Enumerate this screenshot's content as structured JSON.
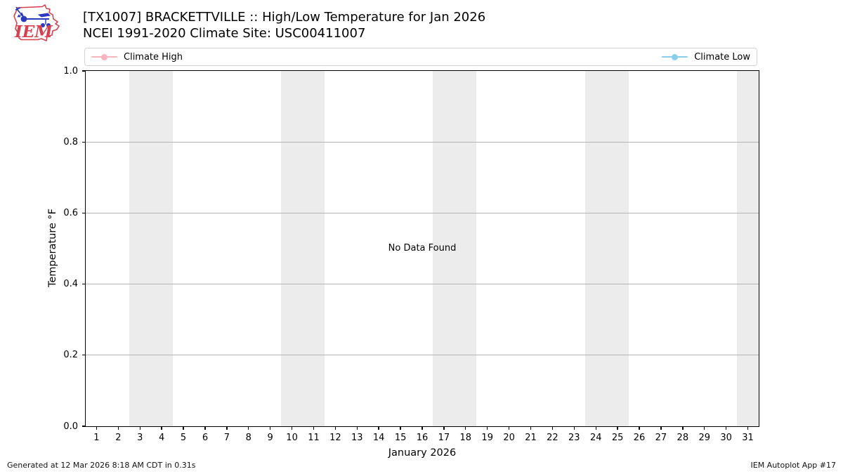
{
  "header": {
    "title_line1": "[TX1007] BRACKETTVILLE :: High/Low Temperature for Jan 2026",
    "title_line2": "NCEI 1991-2020 Climate Site: USC00411007",
    "logo_text": "IEM"
  },
  "legend": {
    "high": {
      "label": "Climate High",
      "color": "#f9b4c0"
    },
    "low": {
      "label": "Climate Low",
      "color": "#87ceeb"
    }
  },
  "chart_data": {
    "type": "line",
    "title": "[TX1007] BRACKETTVILLE :: High/Low Temperature for Jan 2026",
    "subtitle": "NCEI 1991-2020 Climate Site: USC00411007",
    "xlabel": "January 2026",
    "ylabel": "Temperature °F",
    "x_range": [
      0.5,
      31.5
    ],
    "x_ticks": [
      1,
      2,
      3,
      4,
      5,
      6,
      7,
      8,
      9,
      10,
      11,
      12,
      13,
      14,
      15,
      16,
      17,
      18,
      19,
      20,
      21,
      22,
      23,
      24,
      25,
      26,
      27,
      28,
      29,
      30,
      31
    ],
    "y_range": [
      0.0,
      1.0
    ],
    "y_ticks": [
      "0.0",
      "0.2",
      "0.4",
      "0.6",
      "0.8",
      "1.0"
    ],
    "grid": true,
    "gridline_values": [
      0.2,
      0.4,
      0.6,
      0.8
    ],
    "weekend_bands": [
      [
        2.5,
        4.5
      ],
      [
        9.5,
        11.5
      ],
      [
        16.5,
        18.5
      ],
      [
        23.5,
        25.5
      ],
      [
        30.5,
        31.5
      ]
    ],
    "band_color": "#ececec",
    "legend_position": "top full-width, high left / low right",
    "series": [
      {
        "name": "Climate High",
        "color": "#f9b4c0",
        "values": []
      },
      {
        "name": "Climate Low",
        "color": "#87ceeb",
        "values": []
      }
    ],
    "no_data_text": "No Data Found"
  },
  "footer": {
    "left": "Generated at 12 Mar 2026 8:18 AM CDT in 0.31s",
    "right": "IEM Autoplot App #17"
  }
}
